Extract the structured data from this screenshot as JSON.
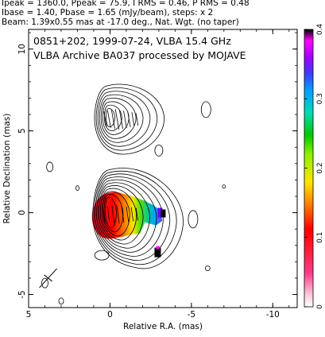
{
  "header": {
    "line1": "Ipeak = 1360.0, Ppeak = 75.9, I RMS = 0.46, P RMS = 0.48",
    "line2": "Ibase = 1.40, Pbase = 1.65 (mJy/beam), steps: x 2",
    "line3": "Beam: 1.39x0.55 mas at -17.0 deg., Nat. Wgt. (no taper)"
  },
  "chart_data": {
    "type": "contour",
    "title_line1": "0851+202, 1999-07-24, VLBA 15.4 GHz",
    "title_line2": "VLBA Archive BA037 processed by MOJAVE",
    "xlabel": "Relative R.A. (mas)",
    "ylabel": "Relative Declination (mas)",
    "xlim": [
      5,
      -11.5
    ],
    "ylim": [
      -5.8,
      11.2
    ],
    "xticks": [
      5,
      0,
      -5,
      -10
    ],
    "yticks": [
      -5,
      0,
      5,
      10
    ],
    "colorbar": {
      "ticks": [
        0,
        0.1,
        0.2,
        0.3,
        0.4
      ],
      "range": [
        0,
        0.4
      ]
    },
    "beam": {
      "major_mas": 1.39,
      "minor_mas": 0.55,
      "pa_deg": -17.0,
      "center": [
        3.8,
        -4.0
      ]
    },
    "core": {
      "x": 0.0,
      "y": 0.0
    },
    "upper_feature_center": [
      0.0,
      5.8
    ],
    "contour_levels_mJy": [
      1.4,
      2.8,
      5.6,
      11.2,
      22.4,
      44.8,
      89.6,
      179.2,
      358.4,
      716.8
    ]
  }
}
